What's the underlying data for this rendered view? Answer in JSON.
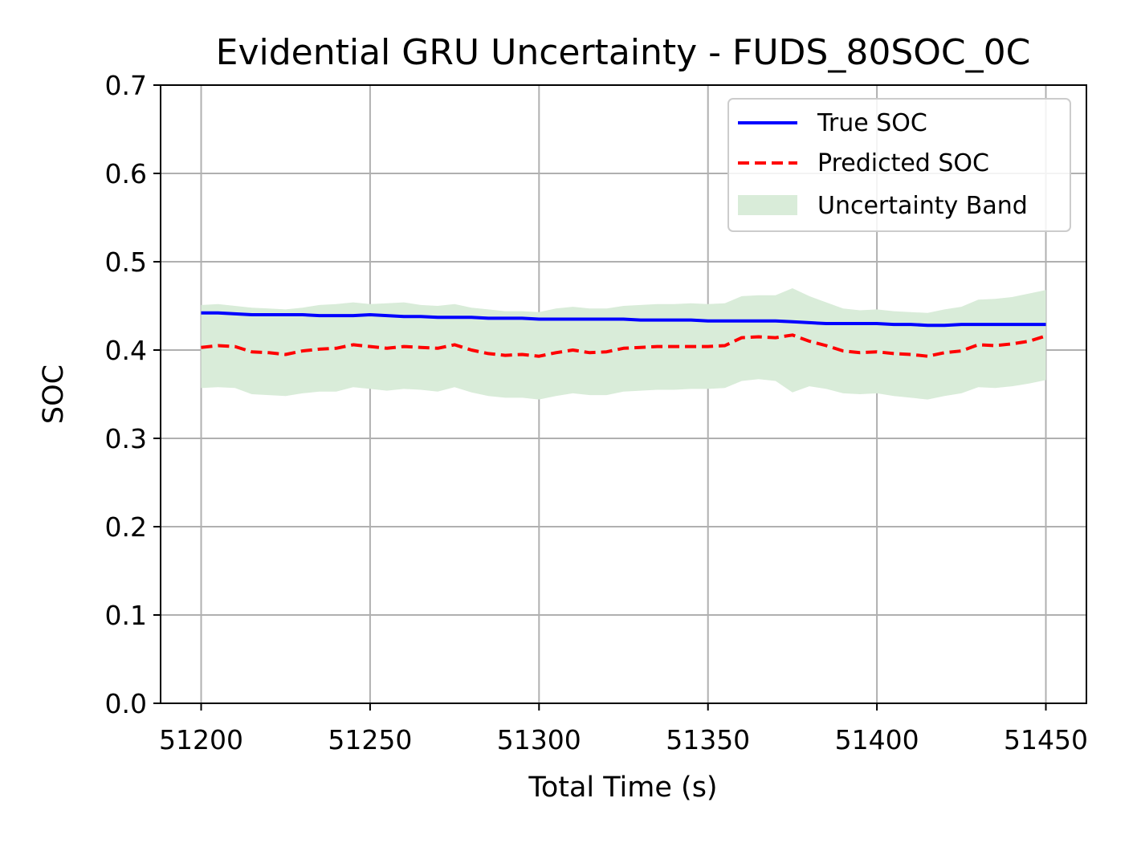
{
  "chart_data": {
    "type": "line",
    "title": "Evidential GRU Uncertainty - FUDS_80SOC_0C",
    "xlabel": "Total Time (s)",
    "ylabel": "SOC",
    "xlim": [
      51188,
      51462
    ],
    "ylim": [
      0.0,
      0.7
    ],
    "xticks": [
      51200,
      51250,
      51300,
      51350,
      51400,
      51450
    ],
    "yticks": [
      0.0,
      0.1,
      0.2,
      0.3,
      0.4,
      0.5,
      0.6,
      0.7
    ],
    "grid": true,
    "legend_position": "upper-right",
    "x": [
      51200,
      51205,
      51210,
      51215,
      51220,
      51225,
      51230,
      51235,
      51240,
      51245,
      51250,
      51255,
      51260,
      51265,
      51270,
      51275,
      51280,
      51285,
      51290,
      51295,
      51300,
      51305,
      51310,
      51315,
      51320,
      51325,
      51330,
      51335,
      51340,
      51345,
      51350,
      51355,
      51360,
      51365,
      51370,
      51375,
      51380,
      51385,
      51390,
      51395,
      51400,
      51405,
      51410,
      51415,
      51420,
      51425,
      51430,
      51435,
      51440,
      51445,
      51450
    ],
    "series": [
      {
        "name": "True SOC",
        "color": "#0000ff",
        "style": "solid",
        "values": [
          0.442,
          0.442,
          0.441,
          0.44,
          0.44,
          0.44,
          0.44,
          0.439,
          0.439,
          0.439,
          0.44,
          0.439,
          0.438,
          0.438,
          0.437,
          0.437,
          0.437,
          0.436,
          0.436,
          0.436,
          0.435,
          0.435,
          0.435,
          0.435,
          0.435,
          0.435,
          0.434,
          0.434,
          0.434,
          0.434,
          0.433,
          0.433,
          0.433,
          0.433,
          0.433,
          0.432,
          0.431,
          0.43,
          0.43,
          0.43,
          0.43,
          0.429,
          0.429,
          0.428,
          0.428,
          0.429,
          0.429,
          0.429,
          0.429,
          0.429,
          0.429
        ]
      },
      {
        "name": "Predicted SOC",
        "color": "#ff0000",
        "style": "dashed",
        "values": [
          0.403,
          0.405,
          0.404,
          0.398,
          0.397,
          0.395,
          0.399,
          0.401,
          0.402,
          0.406,
          0.404,
          0.402,
          0.404,
          0.403,
          0.402,
          0.406,
          0.4,
          0.396,
          0.394,
          0.395,
          0.393,
          0.397,
          0.4,
          0.397,
          0.398,
          0.402,
          0.403,
          0.404,
          0.404,
          0.404,
          0.404,
          0.405,
          0.414,
          0.415,
          0.414,
          0.417,
          0.41,
          0.405,
          0.399,
          0.397,
          0.398,
          0.396,
          0.395,
          0.393,
          0.397,
          0.399,
          0.406,
          0.405,
          0.407,
          0.41,
          0.416
        ]
      },
      {
        "name": "Uncertainty Band",
        "color": "#d9ecd9",
        "style": "fill",
        "upper": [
          0.451,
          0.452,
          0.45,
          0.448,
          0.447,
          0.446,
          0.448,
          0.451,
          0.452,
          0.454,
          0.452,
          0.453,
          0.454,
          0.451,
          0.45,
          0.452,
          0.448,
          0.446,
          0.444,
          0.444,
          0.443,
          0.447,
          0.449,
          0.447,
          0.447,
          0.45,
          0.451,
          0.452,
          0.452,
          0.453,
          0.452,
          0.453,
          0.461,
          0.462,
          0.462,
          0.47,
          0.461,
          0.454,
          0.447,
          0.445,
          0.446,
          0.444,
          0.443,
          0.442,
          0.446,
          0.449,
          0.457,
          0.458,
          0.46,
          0.464,
          0.468
        ],
        "lower": [
          0.357,
          0.358,
          0.357,
          0.35,
          0.349,
          0.348,
          0.351,
          0.353,
          0.353,
          0.358,
          0.356,
          0.354,
          0.356,
          0.355,
          0.353,
          0.358,
          0.352,
          0.348,
          0.346,
          0.346,
          0.344,
          0.348,
          0.351,
          0.349,
          0.349,
          0.353,
          0.354,
          0.355,
          0.355,
          0.356,
          0.356,
          0.357,
          0.365,
          0.367,
          0.365,
          0.352,
          0.359,
          0.356,
          0.351,
          0.35,
          0.351,
          0.348,
          0.346,
          0.344,
          0.348,
          0.351,
          0.358,
          0.357,
          0.359,
          0.362,
          0.366
        ]
      }
    ]
  }
}
